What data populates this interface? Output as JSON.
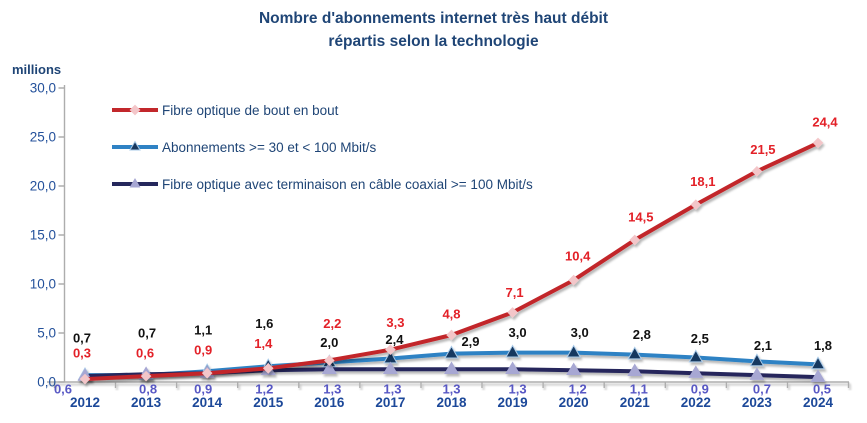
{
  "title": {
    "line1": "Nombre d'abonnements internet très haut débit",
    "line2": "répartis selon la technologie"
  },
  "y_axis": {
    "unit_label": "millions",
    "tick_labels": [
      "0,0",
      "5,0",
      "10,0",
      "15,0",
      "20,0",
      "25,0",
      "30,0"
    ]
  },
  "chart_data": {
    "type": "line",
    "title": "Nombre d'abonnements internet très haut débit répartis selon la technologie",
    "ylabel": "millions",
    "ylim": [
      0,
      30
    ],
    "y_tick_step": 5,
    "grid": false,
    "legend_position": "top-left",
    "categories": [
      "2012",
      "2013",
      "2014",
      "2015",
      "2016",
      "2017",
      "2018",
      "2019",
      "2020",
      "2021",
      "2022",
      "2023",
      "2024"
    ],
    "series": [
      {
        "name": "Fibre optique de bout en bout",
        "line_color": "#C2272B",
        "label_color": "#E32128",
        "marker": "diamond",
        "marker_fill": "#F3C6C9",
        "values": [
          0.3,
          0.6,
          0.9,
          1.4,
          2.2,
          3.3,
          4.8,
          7.1,
          10.4,
          14.5,
          18.1,
          21.5,
          24.4
        ],
        "labels": [
          "0,3",
          "0,6",
          "0,9",
          "1,4",
          "2,2",
          "3,3",
          "4,8",
          "7,1",
          "10,4",
          "14,5",
          "18,1",
          "21,5",
          "24,4"
        ]
      },
      {
        "name": "Abonnements >= 30 et < 100 Mbit/s",
        "line_color": "#2F82C4",
        "label_color": "#111111",
        "marker": "triangle",
        "marker_fill": "#17375E",
        "marker_stroke": "#AACBE9",
        "values": [
          0.7,
          0.7,
          1.1,
          1.6,
          2.0,
          2.4,
          2.9,
          3.0,
          3.0,
          2.8,
          2.5,
          2.1,
          1.8
        ],
        "labels": [
          "0,7",
          "0,7",
          "1,1",
          "1,6",
          "2,0",
          "2,4",
          "2,9",
          "3,0",
          "3,0",
          "2,8",
          "2,5",
          "2,1",
          "1,8"
        ]
      },
      {
        "name": "Fibre optique avec terminaison en câble coaxial >= 100 Mbit/s",
        "line_color": "#25285C",
        "label_color": "#5757C4",
        "marker": "triangle",
        "marker_fill": "#A7A7D3",
        "values": [
          0.6,
          0.8,
          0.9,
          1.2,
          1.3,
          1.3,
          1.3,
          1.3,
          1.2,
          1.1,
          0.9,
          0.7,
          0.5
        ],
        "labels": [
          "0,6",
          "0,8",
          "0,9",
          "1,2",
          "1,3",
          "1,3",
          "1,3",
          "1,3",
          "1,2",
          "1,1",
          "0,9",
          "0,7",
          "0,5"
        ]
      }
    ],
    "axis_text_color": "#1C4899",
    "axis_line_color": "#ADADAD"
  }
}
